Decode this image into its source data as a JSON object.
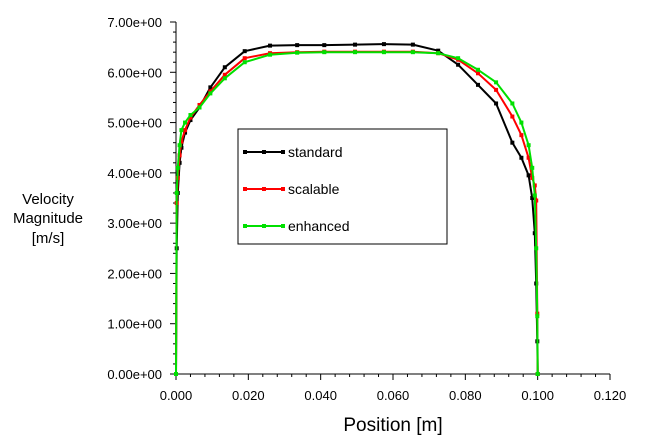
{
  "chart_data": {
    "type": "line",
    "xlabel": "Position [m]",
    "ylabel_lines": [
      "Velocity",
      "Magnitude",
      "[m/s]"
    ],
    "xlim": [
      0,
      0.12
    ],
    "ylim": [
      0,
      7
    ],
    "x_ticks": [
      "0.000",
      "0.020",
      "0.040",
      "0.060",
      "0.080",
      "0.100",
      "0.120"
    ],
    "y_ticks": [
      "0.00e+00",
      "1.00e+00",
      "2.00e+00",
      "3.00e+00",
      "4.00e+00",
      "5.00e+00",
      "6.00e+00",
      "7.00e+00"
    ],
    "legend_position": "center-left",
    "series": [
      {
        "name": "standard",
        "color": "#000000",
        "x": [
          0.0,
          0.0002,
          0.0005,
          0.001,
          0.0015,
          0.0025,
          0.004,
          0.0065,
          0.0095,
          0.0135,
          0.019,
          0.026,
          0.0335,
          0.041,
          0.0495,
          0.0575,
          0.0655,
          0.0725,
          0.078,
          0.0835,
          0.0885,
          0.093,
          0.0955,
          0.0975,
          0.0985,
          0.0992,
          0.0996,
          0.0999,
          0.1
        ],
        "y": [
          0.0,
          2.5,
          3.6,
          4.2,
          4.5,
          4.8,
          5.05,
          5.3,
          5.7,
          6.1,
          6.42,
          6.53,
          6.54,
          6.54,
          6.55,
          6.56,
          6.55,
          6.43,
          6.15,
          5.75,
          5.38,
          4.6,
          4.3,
          3.95,
          3.5,
          2.8,
          1.8,
          0.65,
          0.0
        ]
      },
      {
        "name": "scalable",
        "color": "#ff0000",
        "x": [
          0.0,
          0.0002,
          0.0005,
          0.001,
          0.0015,
          0.0025,
          0.004,
          0.0065,
          0.0095,
          0.0135,
          0.019,
          0.026,
          0.0335,
          0.041,
          0.0495,
          0.0575,
          0.0655,
          0.0725,
          0.078,
          0.0835,
          0.0885,
          0.093,
          0.0955,
          0.0975,
          0.0985,
          0.0992,
          0.0996,
          0.0999,
          0.1
        ],
        "y": [
          0.0,
          3.4,
          3.9,
          4.35,
          4.62,
          4.85,
          5.1,
          5.35,
          5.62,
          5.95,
          6.28,
          6.38,
          6.4,
          6.41,
          6.41,
          6.41,
          6.41,
          6.38,
          6.25,
          5.98,
          5.65,
          5.12,
          4.75,
          4.3,
          3.9,
          3.75,
          3.45,
          1.2,
          0.0
        ]
      },
      {
        "name": "enhanced",
        "color": "#00e000",
        "x": [
          0.0,
          0.0002,
          0.0005,
          0.001,
          0.0015,
          0.0025,
          0.004,
          0.0065,
          0.0095,
          0.0135,
          0.019,
          0.026,
          0.0335,
          0.041,
          0.0495,
          0.0575,
          0.0655,
          0.0725,
          0.078,
          0.0835,
          0.0885,
          0.093,
          0.0955,
          0.0975,
          0.0985,
          0.0992,
          0.0996,
          0.0999,
          0.1
        ],
        "y": [
          0.0,
          3.6,
          4.1,
          4.55,
          4.85,
          5.0,
          5.15,
          5.3,
          5.58,
          5.88,
          6.2,
          6.35,
          6.39,
          6.4,
          6.4,
          6.4,
          6.4,
          6.38,
          6.28,
          6.05,
          5.8,
          5.38,
          5.0,
          4.55,
          4.1,
          3.55,
          2.5,
          1.15,
          0.0
        ]
      }
    ]
  }
}
